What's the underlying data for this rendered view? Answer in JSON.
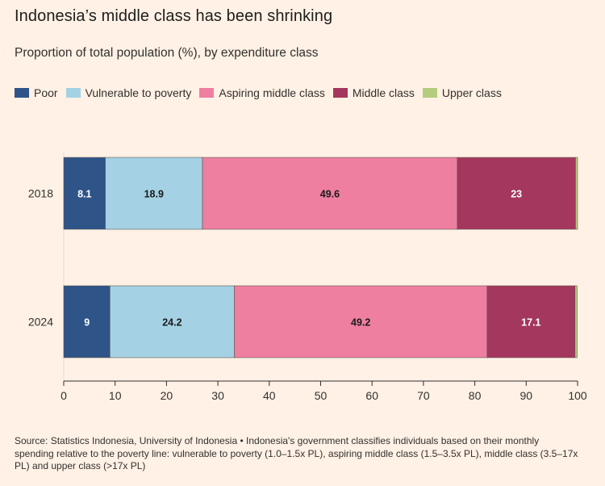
{
  "header": {
    "title": "Indonesia’s middle class has been shrinking",
    "subtitle": "Proportion of total population (%), by expenditure class"
  },
  "colors": {
    "poor": "#2E5488",
    "vulnerable": "#A4D2E4",
    "aspiring": "#EE7FA1",
    "middle": "#A4375D",
    "upper": "#B5CC7E",
    "axis": "#33302E",
    "gridline": "#E6D9CE"
  },
  "legend": {
    "items": [
      {
        "label": "Poor",
        "color": "#2E5488"
      },
      {
        "label": "Vulnerable to poverty",
        "color": "#A4D2E4"
      },
      {
        "label": "Aspiring middle class",
        "color": "#EE7FA1"
      },
      {
        "label": "Middle class",
        "color": "#A4375D"
      },
      {
        "label": "Upper class",
        "color": "#B5CC7E"
      }
    ]
  },
  "chart_data": {
    "type": "bar",
    "orientation": "horizontal",
    "stacked": true,
    "title": "Indonesia’s middle class has been shrinking",
    "subtitle": "Proportion of total population (%), by expenditure class",
    "categories": [
      "2018",
      "2024"
    ],
    "series": [
      {
        "name": "Poor",
        "values": [
          8.1,
          9
        ],
        "labels": [
          "8.1",
          "9"
        ],
        "color": "#2E5488",
        "label_color": "#FFFFFF"
      },
      {
        "name": "Vulnerable to poverty",
        "values": [
          18.9,
          24.2
        ],
        "labels": [
          "18.9",
          "24.2"
        ],
        "color": "#A4D2E4",
        "label_color": "#1a1a1a"
      },
      {
        "name": "Aspiring middle class",
        "values": [
          49.6,
          49.2
        ],
        "labels": [
          "49.6",
          "49.2"
        ],
        "color": "#EE7FA1",
        "label_color": "#1a1a1a"
      },
      {
        "name": "Middle class",
        "values": [
          23,
          17.1
        ],
        "labels": [
          "23",
          "17.1"
        ],
        "color": "#A4375D",
        "label_color": "#FFFFFF"
      },
      {
        "name": "Upper class",
        "values": [
          0.4,
          0.4
        ],
        "labels": [
          "",
          ""
        ],
        "color": "#B5CC7E",
        "label_color": "#1a1a1a"
      }
    ],
    "xlim": [
      0,
      100
    ],
    "xticks": [
      "0",
      "10",
      "20",
      "30",
      "40",
      "50",
      "60",
      "70",
      "80",
      "90",
      "100"
    ],
    "grid": false,
    "legend_position": "top-left"
  },
  "footer": {
    "source": "Source: Statistics Indonesia, University of Indonesia • Indonesia's government classifies individuals based on their monthly spending relative to the poverty line: vulnerable to poverty (1.0–1.5x PL), aspiring middle class (1.5–3.5x PL), middle class (3.5–17x PL) and upper class (>17x PL)"
  }
}
